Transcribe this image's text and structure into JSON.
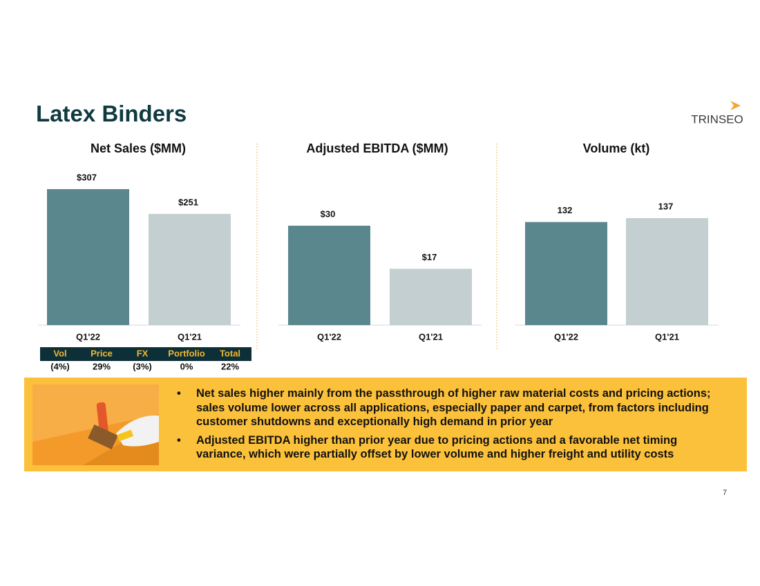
{
  "title": "Latex Binders",
  "logo": "TRINSEO",
  "page_number": "7",
  "chart_data": [
    {
      "type": "bar",
      "title": "Net Sales ($MM)",
      "categories": [
        "Q1'22",
        "Q1'21"
      ],
      "values": [
        307,
        251
      ],
      "value_labels": [
        "$307",
        "$251"
      ],
      "colors": [
        "#5a878d",
        "#c3cfd0"
      ]
    },
    {
      "type": "bar",
      "title": "Adjusted EBITDA ($MM)",
      "categories": [
        "Q1'22",
        "Q1'21"
      ],
      "values": [
        30,
        17
      ],
      "value_labels": [
        "$30",
        "$17"
      ],
      "colors": [
        "#5a878d",
        "#c3cfd0"
      ]
    },
    {
      "type": "bar",
      "title": "Volume (kt)",
      "categories": [
        "Q1'22",
        "Q1'21"
      ],
      "values": [
        132,
        137
      ],
      "colors": [
        "#5a878d",
        "#c3cfd0"
      ]
    }
  ],
  "bridge": {
    "headers": [
      "Vol",
      "Price",
      "FX",
      "Portfolio",
      "Total"
    ],
    "values": [
      "(4%)",
      "29%",
      "(3%)",
      "0%",
      "22%"
    ]
  },
  "bullets": [
    "Net sales higher mainly from the passthrough of higher raw material costs and pricing actions; sales volume lower across all applications, especially paper and carpet, from factors including customer shutdowns and exceptionally high demand in prior year",
    "Adjusted EBITDA higher than prior year due to pricing actions and a favorable net timing variance, which were partially offset by lower volume and higher freight and utility costs"
  ]
}
